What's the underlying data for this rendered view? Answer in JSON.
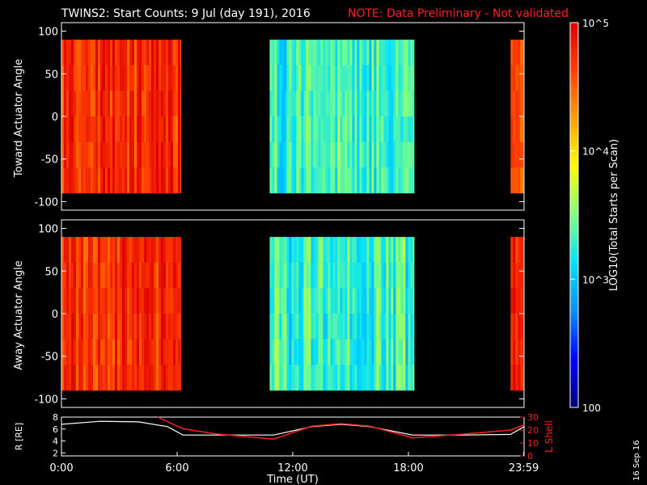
{
  "header": {
    "title": "TWINS2: Start Counts:  9 Jul (day 191), 2016",
    "note": "NOTE: Data Preliminary - Not validated"
  },
  "footer": {
    "date_stamp": "16 Sep 16"
  },
  "colors": {
    "background": "#000000",
    "frame": "#ffffff",
    "note": "#ff2020",
    "r_line": "#ffffff",
    "l_line": "#ff2020",
    "colormap": [
      "#00007a",
      "#0000ff",
      "#0090ff",
      "#00e0ff",
      "#80ff80",
      "#ffff00",
      "#ffa000",
      "#ff4000",
      "#e00000"
    ]
  },
  "chart_data": [
    {
      "type": "heatmap",
      "ylabel": "Toward Actuator Angle",
      "yticks": [
        "100",
        "50",
        "0",
        "-50",
        "-100"
      ],
      "ylim": [
        -110,
        110
      ],
      "xlim_hours": [
        0,
        24
      ],
      "data_coverage_hours": [
        [
          0,
          6.2
        ],
        [
          10.8,
          18.3
        ],
        [
          23.3,
          24
        ]
      ],
      "y_data_range": [
        -90,
        90
      ],
      "intensity_log10_by_interval": [
        4.75,
        3.3,
        4.7
      ]
    },
    {
      "type": "heatmap",
      "ylabel": "Away Actuator Angle",
      "yticks": [
        "100",
        "50",
        "0",
        "-50",
        "-100"
      ],
      "ylim": [
        -110,
        110
      ],
      "xlim_hours": [
        0,
        24
      ],
      "data_coverage_hours": [
        [
          0,
          6.2
        ],
        [
          10.8,
          18.3
        ],
        [
          23.3,
          24
        ]
      ],
      "y_data_range": [
        -90,
        90
      ],
      "intensity_log10_by_interval": [
        4.75,
        3.3,
        4.7
      ]
    },
    {
      "type": "line",
      "ylabel_left": "R [RE]",
      "ylabel_right": "L Shell",
      "xlabel": "Time (UT)",
      "xticks": [
        "0:00",
        "6:00",
        "12:00",
        "18:00",
        "23:59"
      ],
      "ylim_left": [
        1.5,
        8
      ],
      "yticks_left": [
        "8",
        "6",
        "4",
        "2"
      ],
      "ylim_right": [
        0,
        30
      ],
      "yticks_right": [
        "30",
        "20",
        "10",
        "0"
      ],
      "series": [
        {
          "name": "R",
          "x": [
            0,
            2,
            4,
            5.5,
            6.3,
            9,
            11,
            13,
            14.5,
            16,
            18.2,
            21,
            23.3,
            24
          ],
          "y": [
            6.8,
            7.3,
            7.2,
            6.4,
            5.0,
            5.0,
            5.0,
            6.4,
            6.8,
            6.4,
            5.0,
            5.0,
            5.1,
            6.4
          ]
        },
        {
          "name": "L Shell",
          "x": [
            5.0,
            6.3,
            8,
            11,
            13,
            14.5,
            16,
            18.2,
            21,
            23.3,
            24
          ],
          "y": [
            30,
            21,
            17,
            13,
            23,
            25,
            23,
            14,
            17,
            20,
            24
          ]
        }
      ]
    },
    {
      "type": "colorbar",
      "label": "LOG10(Total Starts per Scan)",
      "range_log10": [
        2,
        5
      ],
      "tick_labels": [
        "10^5",
        "10^4",
        "10^3",
        "100"
      ]
    }
  ]
}
